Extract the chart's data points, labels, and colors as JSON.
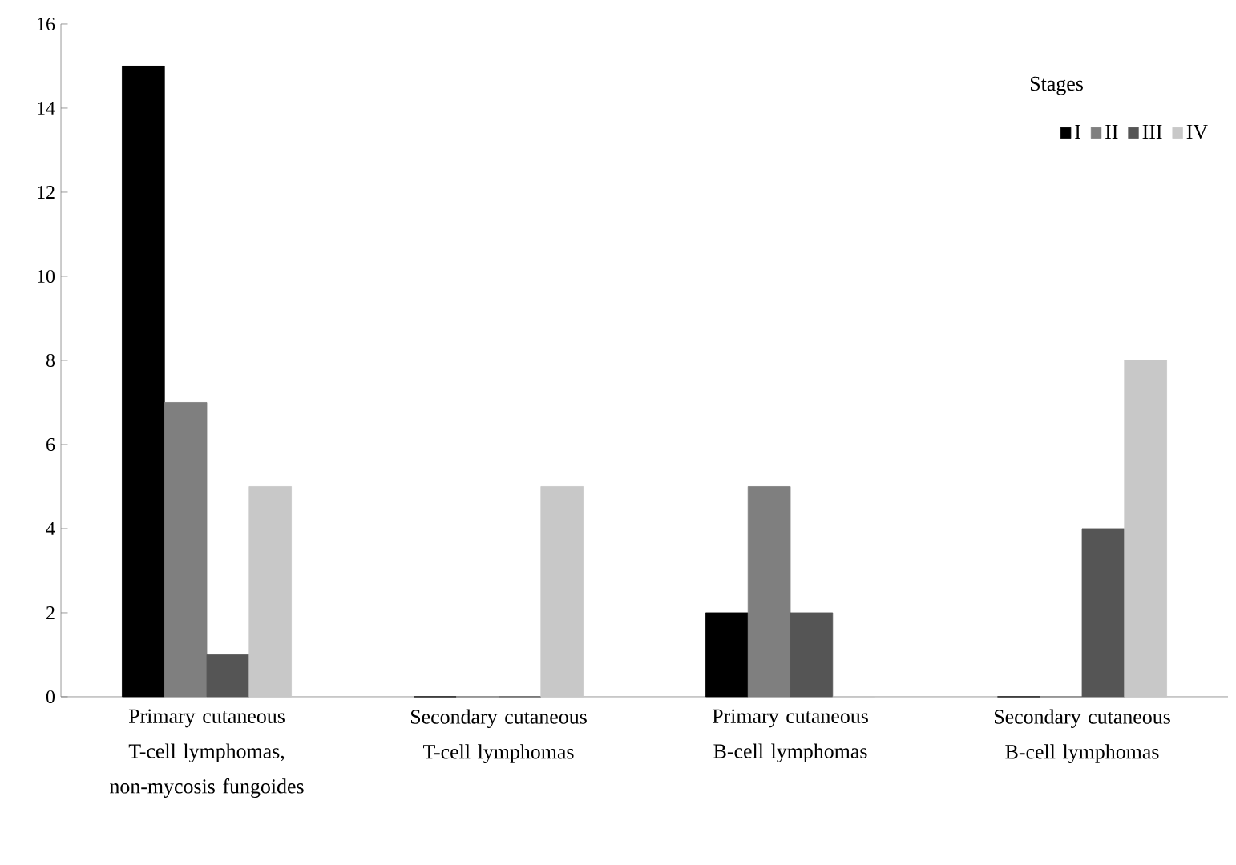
{
  "chart_data": {
    "type": "bar",
    "categories": [
      "Primary cutaneous T-cell lymphomas, non-mycosis fungoides",
      "Secondary cutaneous T-cell lymphomas",
      "Primary cutaneous B-cell lymphomas",
      "Secondary cutaneous B-cell lymphomas"
    ],
    "series": [
      {
        "name": "I",
        "color": "#000000",
        "values": [
          15,
          0,
          2,
          0
        ]
      },
      {
        "name": "II",
        "color": "#7f7f7f",
        "values": [
          7,
          0,
          5,
          0
        ]
      },
      {
        "name": "III",
        "color": "#555555",
        "values": [
          1,
          0,
          2,
          4
        ]
      },
      {
        "name": "IV",
        "color": "#c8c8c8",
        "values": [
          5,
          5,
          0,
          8
        ]
      }
    ],
    "legend_title": "Stages",
    "legend": "top right",
    "ylim": [
      0,
      16
    ],
    "yticks": [
      0,
      2,
      4,
      6,
      8,
      10,
      12,
      14,
      16
    ],
    "grid": false
  }
}
